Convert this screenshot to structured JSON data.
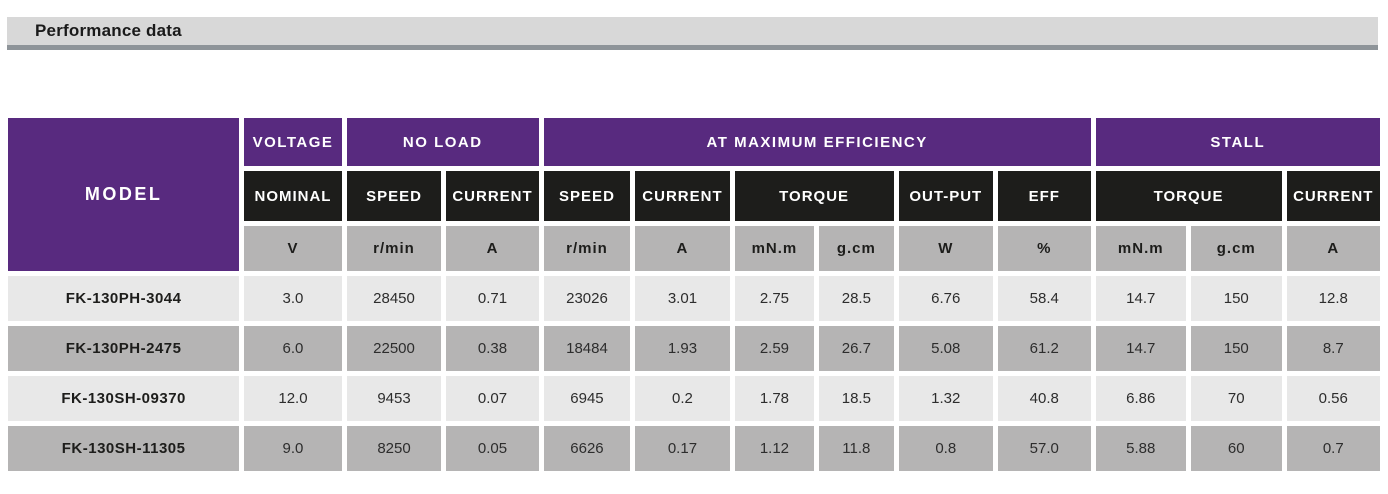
{
  "section": {
    "title": "Performance data"
  },
  "table": {
    "model_header": "MODEL",
    "groups": [
      {
        "label": "VOLTAGE",
        "span": 1
      },
      {
        "label": "NO LOAD",
        "span": 2
      },
      {
        "label": "AT MAXIMUM EFFICIENCY",
        "span": 6
      },
      {
        "label": "STALL",
        "span": 3
      }
    ],
    "subheaders": [
      {
        "label": "NOMINAL",
        "span": 1
      },
      {
        "label": "SPEED",
        "span": 1
      },
      {
        "label": "CURRENT",
        "span": 1
      },
      {
        "label": "SPEED",
        "span": 1
      },
      {
        "label": "CURRENT",
        "span": 1
      },
      {
        "label": "TORQUE",
        "span": 2
      },
      {
        "label": "OUT-PUT",
        "span": 1
      },
      {
        "label": "EFF",
        "span": 1
      },
      {
        "label": "TORQUE",
        "span": 2
      },
      {
        "label": "CURRENT",
        "span": 1
      }
    ],
    "units": [
      "V",
      "r/min",
      "A",
      "r/min",
      "A",
      "mN.m",
      "g.cm",
      "W",
      "%",
      "mN.m",
      "g.cm",
      "A"
    ],
    "rows": [
      {
        "model": "FK-130PH-3044",
        "values": [
          "3.0",
          "28450",
          "0.71",
          "23026",
          "3.01",
          "2.75",
          "28.5",
          "6.76",
          "58.4",
          "14.7",
          "150",
          "12.8"
        ]
      },
      {
        "model": "FK-130PH-2475",
        "values": [
          "6.0",
          "22500",
          "0.38",
          "18484",
          "1.93",
          "2.59",
          "26.7",
          "5.08",
          "61.2",
          "14.7",
          "150",
          "8.7"
        ]
      },
      {
        "model": "FK-130SH-09370",
        "values": [
          "12.0",
          "9453",
          "0.07",
          "6945",
          "0.2",
          "1.78",
          "18.5",
          "1.32",
          "40.8",
          "6.86",
          "70",
          "0.56"
        ]
      },
      {
        "model": "FK-130SH-11305",
        "values": [
          "9.0",
          "8250",
          "0.05",
          "6626",
          "0.17",
          "1.12",
          "11.8",
          "0.8",
          "57.0",
          "5.88",
          "60",
          "0.7"
        ]
      }
    ],
    "colors": {
      "header_purple": "#582a7f",
      "header_black": "#1d1d1b",
      "unit_gray": "#b5b4b4",
      "row_light_gray": "#e8e8e8",
      "row_dark_gray": "#b5b4b4",
      "title_bar_bg": "#d8d8d8",
      "title_bar_border": "#8e9499"
    }
  }
}
